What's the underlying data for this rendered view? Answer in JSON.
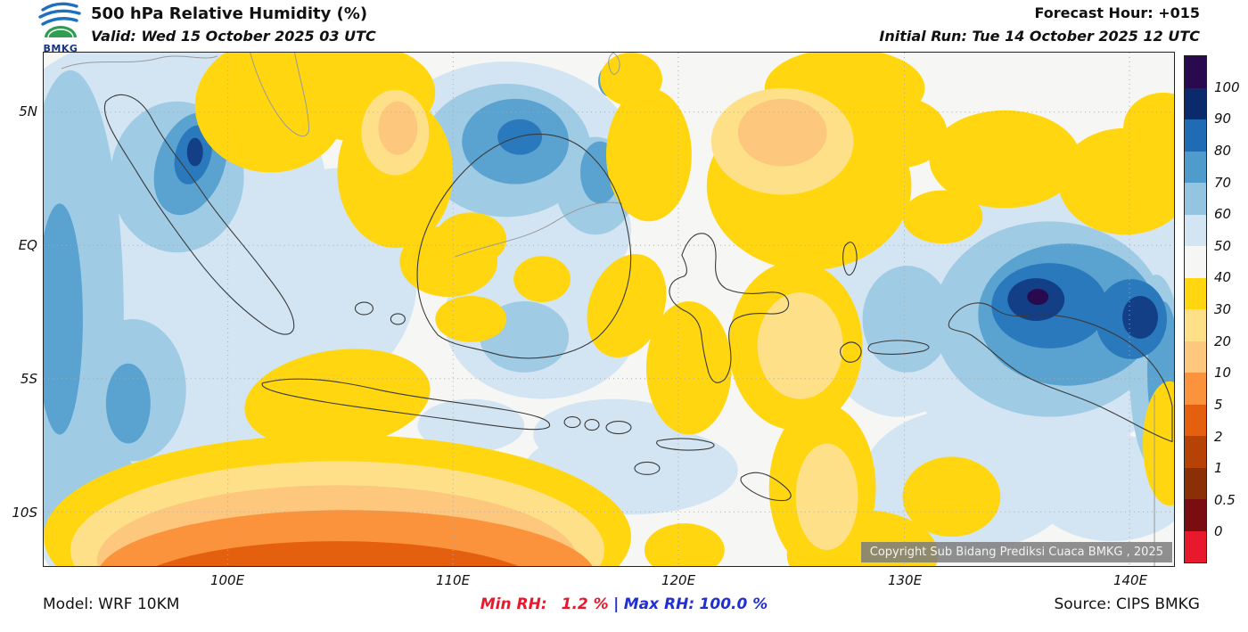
{
  "header": {
    "logo_text": "BMKG",
    "title": "500 hPa Relative Humidity (%)",
    "valid": "Valid: Wed 15 October 2025 03 UTC",
    "forecast_hour": "Forecast Hour: +015",
    "initial_run": "Initial Run: Tue 14 October 2025 12 UTC"
  },
  "map": {
    "lat_labels": [
      "5N",
      "EQ",
      "5S",
      "10S"
    ],
    "lon_labels": [
      "100E",
      "110E",
      "120E",
      "130E",
      "140E"
    ],
    "copyright": "Copyright Sub Bidang Prediksi Cuaca BMKG , 2025"
  },
  "colorbar": {
    "tick_labels": [
      "100",
      "90",
      "80",
      "70",
      "60",
      "50",
      "40",
      "30",
      "20",
      "10",
      "5",
      "2",
      "1",
      "0.5",
      "0"
    ],
    "segment_colors_top_to_bottom": [
      "#2a0a4e",
      "#0b2a6b",
      "#1f6cb4",
      "#4f9bcb",
      "#95c4e0",
      "#d3e5f3",
      "#f6f6f4",
      "#ffd60f",
      "#fee089",
      "#fdc77e",
      "#fb923c",
      "#e45f0e",
      "#b64205",
      "#8a2f06",
      "#7a0d10",
      "#e8192c"
    ]
  },
  "footer": {
    "model": "Model: WRF 10KM",
    "min_label": "Min RH:",
    "min_value": "1.2 %",
    "separator": "|",
    "max_label": "Max RH:",
    "max_value": "100.0 %",
    "source": "Source: CIPS BMKG"
  },
  "chart_data": {
    "type": "heatmap",
    "title": "500 hPa Relative Humidity (%)",
    "units": "%",
    "contour_levels": [
      0,
      0.5,
      1,
      2,
      5,
      10,
      20,
      30,
      40,
      50,
      60,
      70,
      80,
      90,
      100
    ],
    "lat_ticks": [
      "5N",
      "EQ",
      "5S",
      "10S"
    ],
    "lon_ticks": [
      "100E",
      "110E",
      "120E",
      "130E",
      "140E"
    ],
    "min_rh": 1.2,
    "max_rh": 100.0,
    "model": "WRF 10KM",
    "source": "CIPS BMKG",
    "notes": "Filled-contour relative humidity map over Indonesia; high RH (blues) over west Sumatra and Papua, low RH (yellow/orange) over south of Java ocean and central-east archipelago"
  }
}
